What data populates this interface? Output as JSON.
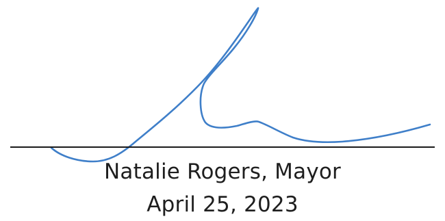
{
  "signer": {
    "name_title": "Natalie Rogers, Mayor",
    "date": "April 25, 2023"
  },
  "colors": {
    "ink": "#3f7fc9",
    "text": "#1e1e1e",
    "line": "#1a1a1a"
  }
}
